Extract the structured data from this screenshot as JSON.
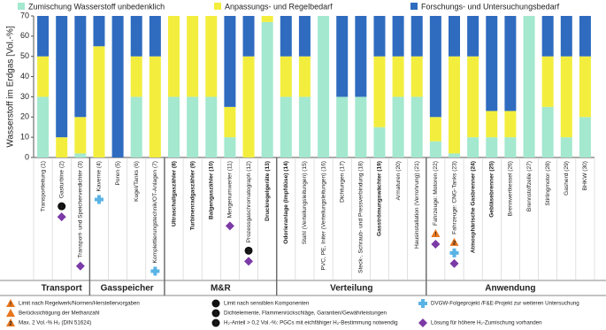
{
  "chart_data": {
    "type": "stacked-bar",
    "y_label": "Wasserstoff im Erdgas [Vol.-%]",
    "ylim": [
      0,
      70
    ],
    "yticks": [
      0,
      10,
      20,
      30,
      40,
      50,
      60,
      70
    ],
    "categories": [
      "Transportleitung (1)",
      "Gasturbine (2)",
      "Transport- und Speicherverdichter (3)",
      "Kaverne (4)",
      "Poren (5)",
      "Kugel/Tanks (6)",
      "Komplettierungstechnik/OT-Anlagen (7)",
      "Ultraschallgaszähler (8)",
      "Turbinenradgaszähler (9)",
      "Balgengaszähler (10)",
      "Mengenumwerter (11)",
      "Prozessgaschromatograph (12)",
      "Druckregelgeräte (13)",
      "Odorieranlage (Impfdüse) (14)",
      "Stahl (Verteilungsleitungen) (15)",
      "PVC, PE, Initer (Verteilungsleitungen) (16)",
      "Dichtungen (17)",
      "Steck-, Schraub- und Pressverbindung (18)",
      "Gasströmungswächter (19)",
      "Armaturen (20)",
      "Hausinstallation (Verrohrung) (21)",
      "Fahrzeuge: Motoren (22)",
      "Fahrzeuge: CNG-Tanks (23)",
      "Atmosphärische Gasbrenner (24)",
      "Gebläsebrenner (25)",
      "Brennwertkessel (26)",
      "Brennstoffzelle (27)",
      "Stirlingmotor (28)",
      "Gasherd (29)",
      "BHKW (30)"
    ],
    "category_bold": [
      false,
      false,
      false,
      false,
      false,
      false,
      false,
      true,
      true,
      true,
      false,
      false,
      true,
      true,
      false,
      false,
      false,
      false,
      true,
      false,
      false,
      false,
      false,
      true,
      true,
      false,
      false,
      false,
      false,
      false
    ],
    "category_groups": [
      "Transport",
      "Transport",
      "Transport",
      "Gasspeicher",
      "Gasspeicher",
      "Gasspeicher",
      "Gasspeicher",
      "M&R",
      "M&R",
      "M&R",
      "M&R",
      "M&R",
      "M&R",
      "Verteilung",
      "Verteilung",
      "Verteilung",
      "Verteilung",
      "Verteilung",
      "Verteilung",
      "Verteilung",
      "Verteilung",
      "Anwendung",
      "Anwendung",
      "Anwendung",
      "Anwendung",
      "Anwendung",
      "Anwendung",
      "Anwendung",
      "Anwendung",
      "Anwendung"
    ],
    "series": [
      {
        "name": "Zumischung Wasserstoff unbedenklich",
        "color": "#a3e8cf",
        "values": [
          30,
          0,
          2,
          0,
          0,
          30,
          0,
          30,
          30,
          30,
          10,
          0,
          67,
          30,
          30,
          70,
          30,
          30,
          15,
          30,
          30,
          8,
          2,
          10,
          10,
          10,
          70,
          25,
          10,
          20
        ]
      },
      {
        "name": "Anpassungs- und Regelbedarf",
        "color": "#f3ee3e",
        "values": [
          20,
          10,
          18,
          55,
          0,
          20,
          50,
          40,
          40,
          40,
          15,
          50,
          3,
          20,
          20,
          0,
          0,
          0,
          35,
          20,
          20,
          12,
          48,
          40,
          13,
          13,
          0,
          25,
          40,
          30
        ]
      },
      {
        "name": "Forschungs- und Untersuchungsbedarf",
        "color": "#2f6cc0",
        "values": [
          20,
          60,
          50,
          15,
          70,
          20,
          20,
          0,
          0,
          0,
          45,
          20,
          0,
          20,
          20,
          0,
          40,
          40,
          20,
          20,
          20,
          50,
          20,
          20,
          47,
          47,
          0,
          20,
          20,
          20
        ]
      }
    ],
    "notes": [
      {
        "symbol": "triangle",
        "glyph": "!",
        "text": "Limit nach Regelwerk/Normen/Herstellervorgaben"
      },
      {
        "symbol": "triangle",
        "text": "Berücksichtigung der Methanzahl"
      },
      {
        "symbol": "triangle",
        "glyph": "2",
        "text": "Max. 2 Vol.-% H₂ (DIN 51624)"
      },
      {
        "symbol": "circle",
        "text": "Limit nach sensiblen Komponenten"
      },
      {
        "symbol": "circle",
        "glyph": "1",
        "text": "Dichtelemente, Flammenrückschläge, Garantien/Gewährleistungen"
      },
      {
        "symbol": "circle",
        "glyph": "2",
        "text": "H₂-Anteil > 0,2 Vol.-%: PGCs mit eichfähiger H₂-Bestimmung notwendig"
      },
      {
        "symbol": "cross",
        "text": "DVGW-Folgeprojekt /F&E-Projekt zur weiteren Untersuchung"
      },
      {
        "symbol": "diamond",
        "text": "Lösung für höhere H₂-Zumischung vorhanden"
      }
    ],
    "category_notes": [
      [],
      [
        4,
        7
      ],
      [
        7
      ],
      [
        6
      ],
      [],
      [],
      [
        6
      ],
      [],
      [],
      [],
      [
        7
      ],
      [
        5,
        7
      ],
      [],
      [],
      [],
      [],
      [],
      [],
      [],
      [],
      [],
      [
        0,
        7
      ],
      [
        2,
        6,
        7
      ],
      [],
      [],
      [],
      [],
      [],
      [],
      []
    ]
  }
}
